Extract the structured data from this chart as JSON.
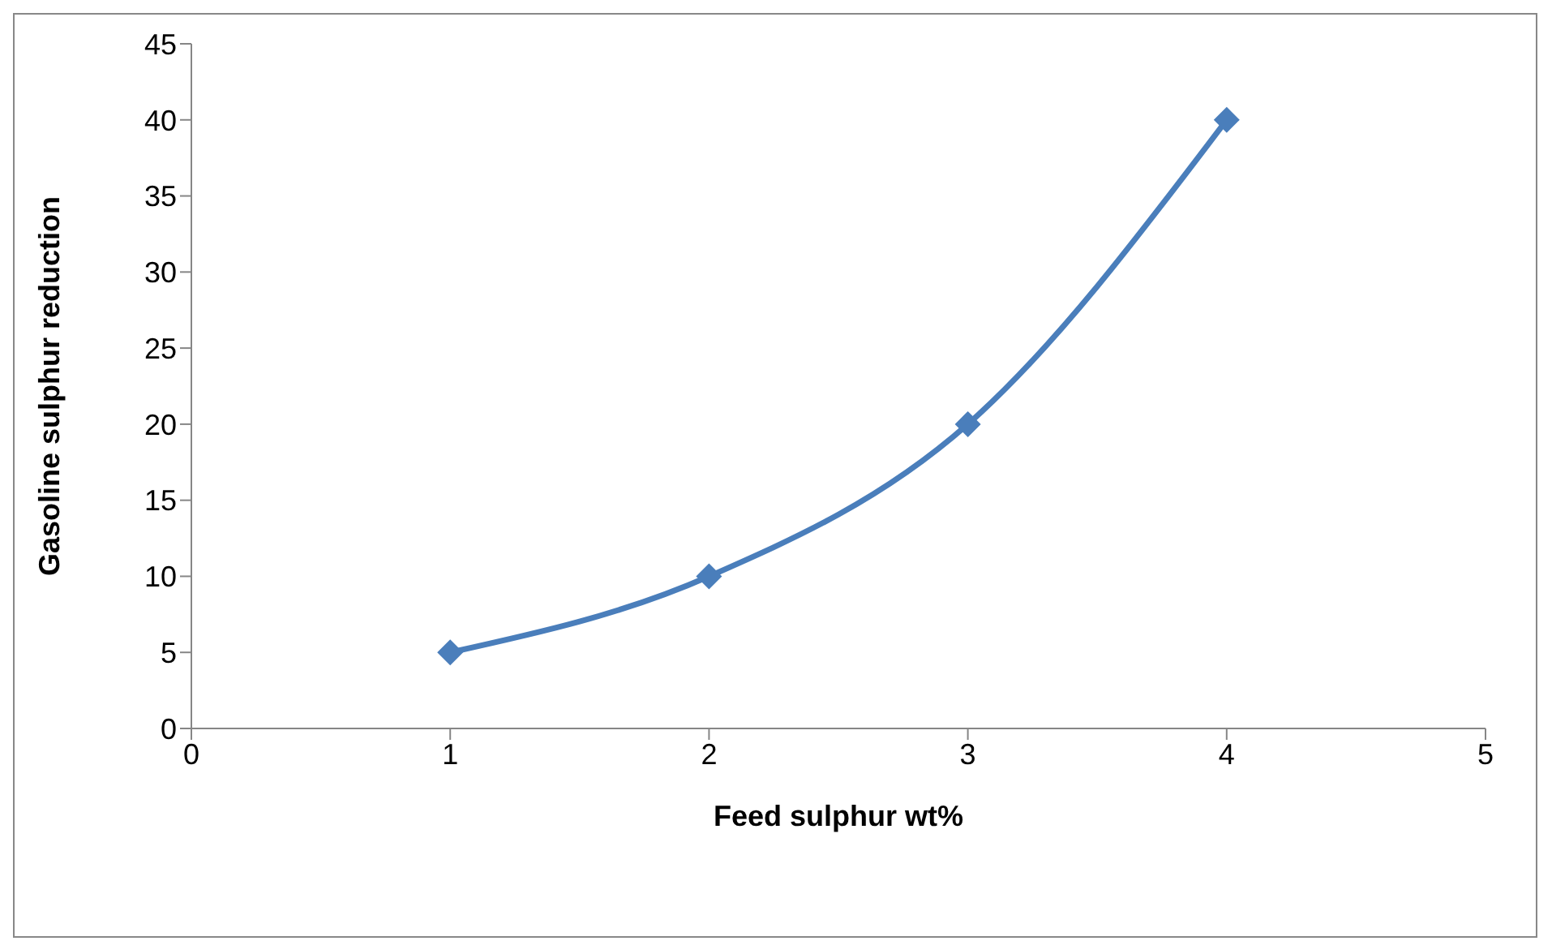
{
  "chart_data": {
    "type": "line",
    "xlabel": "Feed sulphur wt%",
    "ylabel": "Gasoline sulphur reduction",
    "x": [
      1,
      2,
      3,
      4
    ],
    "series": [
      {
        "color": "#4a7ebb",
        "values": [
          5,
          10,
          20,
          40
        ]
      }
    ],
    "xlim": [
      0,
      5
    ],
    "xticks": [
      0,
      1,
      2,
      3,
      4,
      5
    ],
    "ylim": [
      0,
      45
    ],
    "yticks": [
      0,
      5,
      10,
      15,
      20,
      25,
      30,
      35,
      40,
      45
    ],
    "grid": false,
    "legend": false,
    "marker": "diamond",
    "line_style": "solid"
  }
}
